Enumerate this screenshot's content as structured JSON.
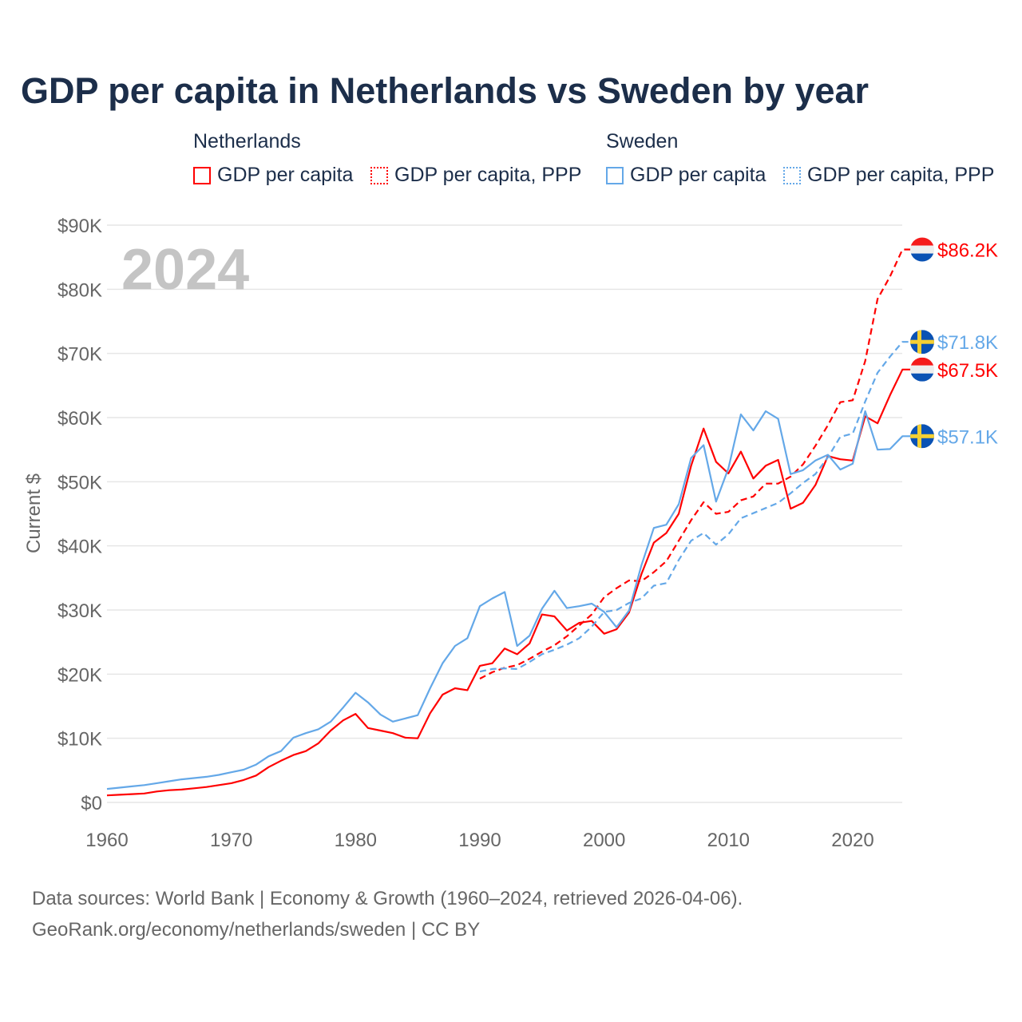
{
  "chart_data": {
    "type": "line",
    "title": "GDP per capita in Netherlands vs Sweden by year",
    "ylabel": "Current $",
    "xlabel": "",
    "year_watermark": "2024",
    "ylim": [
      0,
      90000
    ],
    "xlim": [
      1960,
      2024
    ],
    "yticks": [
      {
        "v": 0,
        "label": "$0"
      },
      {
        "v": 10000,
        "label": "$10K"
      },
      {
        "v": 20000,
        "label": "$20K"
      },
      {
        "v": 30000,
        "label": "$30K"
      },
      {
        "v": 40000,
        "label": "$40K"
      },
      {
        "v": 50000,
        "label": "$50K"
      },
      {
        "v": 60000,
        "label": "$60K"
      },
      {
        "v": 70000,
        "label": "$70K"
      },
      {
        "v": 80000,
        "label": "$80K"
      },
      {
        "v": 90000,
        "label": "$90K"
      }
    ],
    "xticks": [
      "1960",
      "1970",
      "1980",
      "1990",
      "2000",
      "2010",
      "2020"
    ],
    "legend": {
      "groups": [
        "Netherlands",
        "Sweden"
      ],
      "items": [
        "GDP per capita",
        "GDP per capita, PPP",
        "GDP per capita",
        "GDP per capita, PPP"
      ],
      "placement": "top"
    },
    "colors": {
      "netherlands": "#ff0000",
      "sweden": "#64a8e8"
    },
    "series": [
      {
        "name": "Netherlands GDP per capita",
        "country": "netherlands",
        "dashed": false,
        "start": 1960,
        "end_label": "$67.5K",
        "values": [
          1.1,
          1.2,
          1.3,
          1.4,
          1.7,
          1.9,
          2.0,
          2.2,
          2.4,
          2.7,
          3.0,
          3.5,
          4.2,
          5.5,
          6.5,
          7.4,
          8.0,
          9.2,
          11.2,
          12.8,
          13.8,
          11.6,
          11.2,
          10.8,
          10.1,
          10.0,
          13.9,
          16.8,
          17.8,
          17.5,
          21.3,
          21.7,
          24.0,
          23.1,
          24.8,
          29.3,
          29.0,
          26.8,
          28.0,
          28.3,
          26.3,
          27.0,
          29.6,
          35.6,
          40.5,
          42.0,
          45.0,
          52.5,
          58.3,
          53.1,
          51.3,
          54.7,
          50.5,
          52.5,
          53.4,
          45.8,
          46.7,
          49.5,
          54.0,
          53.5,
          53.3,
          60.2,
          59.1,
          63.5,
          67.5
        ]
      },
      {
        "name": "Netherlands GDP per capita, PPP",
        "country": "netherlands",
        "dashed": true,
        "start": 1990,
        "end_label": "$86.2K",
        "values": [
          19.3,
          20.3,
          21.0,
          21.4,
          22.4,
          23.5,
          24.5,
          25.9,
          27.6,
          29.3,
          32.0,
          33.4,
          34.6,
          34.5,
          35.9,
          37.6,
          40.8,
          44.0,
          46.8,
          45.0,
          45.3,
          47.1,
          47.7,
          49.7,
          49.7,
          50.8,
          52.7,
          55.6,
          58.8,
          62.4,
          62.7,
          68.8,
          78.5,
          82.0,
          86.2
        ]
      },
      {
        "name": "Sweden GDP per capita",
        "country": "sweden",
        "dashed": false,
        "start": 1960,
        "end_label": "$57.1K",
        "values": [
          2.1,
          2.3,
          2.5,
          2.7,
          3.0,
          3.3,
          3.6,
          3.8,
          4.0,
          4.3,
          4.7,
          5.1,
          5.9,
          7.2,
          8.0,
          10.1,
          10.8,
          11.4,
          12.6,
          14.8,
          17.1,
          15.6,
          13.7,
          12.6,
          13.1,
          13.6,
          17.8,
          21.7,
          24.4,
          25.6,
          30.6,
          31.8,
          32.8,
          24.4,
          26.0,
          30.2,
          33.0,
          30.3,
          30.6,
          31.0,
          29.7,
          27.3,
          29.9,
          37.0,
          42.8,
          43.3,
          46.5,
          53.7,
          55.7,
          46.9,
          52.1,
          60.5,
          58.0,
          61.0,
          59.8,
          51.2,
          51.8,
          53.3,
          54.2,
          51.9,
          52.8,
          61.0,
          55.0,
          55.1,
          57.1
        ]
      },
      {
        "name": "Sweden GDP per capita, PPP",
        "country": "sweden",
        "dashed": true,
        "start": 1990,
        "end_label": "$71.8K",
        "values": [
          20.4,
          20.8,
          20.9,
          20.8,
          21.9,
          23.1,
          23.8,
          24.6,
          25.6,
          27.4,
          29.7,
          30.0,
          31.1,
          31.8,
          33.8,
          34.2,
          37.8,
          40.8,
          42.0,
          40.2,
          41.8,
          44.3,
          45.1,
          45.9,
          46.7,
          48.2,
          49.8,
          51.2,
          53.8,
          57.0,
          57.5,
          62.5,
          67.0,
          69.5,
          71.8
        ]
      }
    ],
    "value_units": "thousands USD"
  },
  "footer": {
    "line1": "Data sources: World Bank | Economy & Growth (1960–2024, retrieved 2026-04-06).",
    "line2": "GeoRank.org/economy/netherlands/sweden | CC BY"
  }
}
